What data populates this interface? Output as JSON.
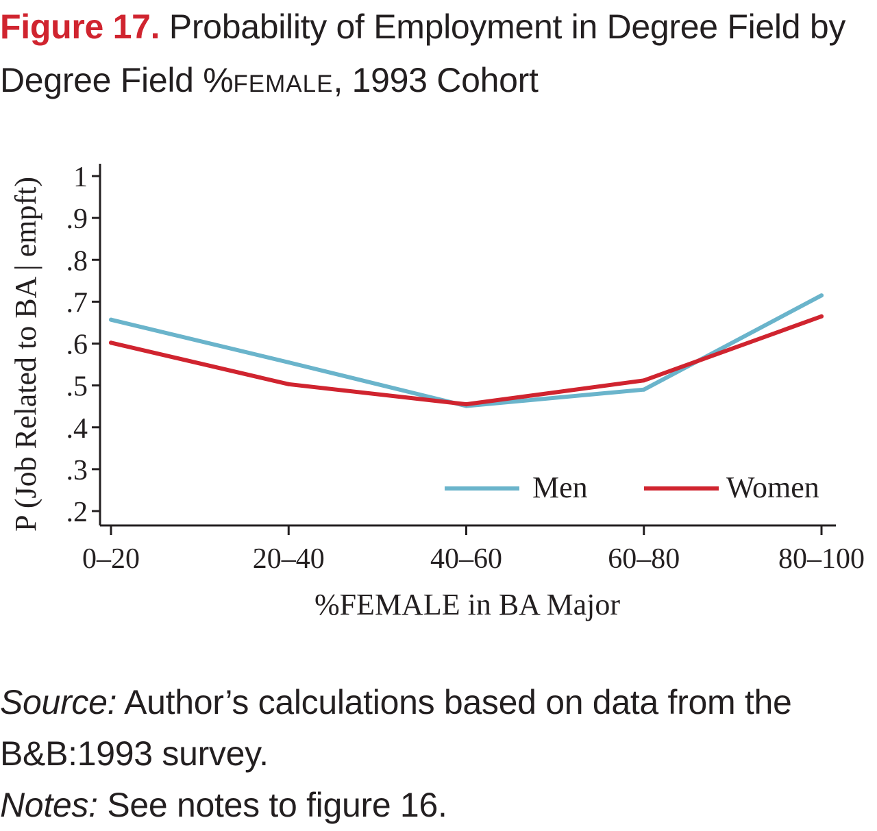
{
  "figure": {
    "label": "Figure 17.",
    "title_part1": "Probability of Employment in Degree Field by Degree Field %",
    "title_smallcaps": "female",
    "title_part2": ", 1993 Cohort"
  },
  "footer": {
    "source_label": "Source:",
    "source_text": "Author’s calculations based on data from the B&B:1993 survey.",
    "notes_label": "Notes:",
    "notes_text": "See notes to figure 16."
  },
  "chart_data": {
    "type": "line",
    "categories": [
      "0–20",
      "20–40",
      "40–60",
      "60–80",
      "80–100"
    ],
    "xlabel": "%FEMALE in BA Major",
    "ylabel": "P (Job Related to BA | empft)",
    "ylim": [
      0.2,
      1.0
    ],
    "yticks": [
      0.2,
      0.3,
      0.4,
      0.5,
      0.6,
      0.7,
      0.8,
      0.9,
      1.0
    ],
    "ytick_labels": [
      ".2",
      ".3",
      ".4",
      ".5",
      ".6",
      ".7",
      ".8",
      ".9",
      "1"
    ],
    "grid": false,
    "legend_position": "bottom-right",
    "series": [
      {
        "name": "Men",
        "color": "#6ab4cb",
        "values": [
          0.657,
          0.555,
          0.451,
          0.49,
          0.715
        ]
      },
      {
        "name": "Women",
        "color": "#d0242f",
        "values": [
          0.602,
          0.503,
          0.455,
          0.512,
          0.665
        ]
      }
    ]
  }
}
